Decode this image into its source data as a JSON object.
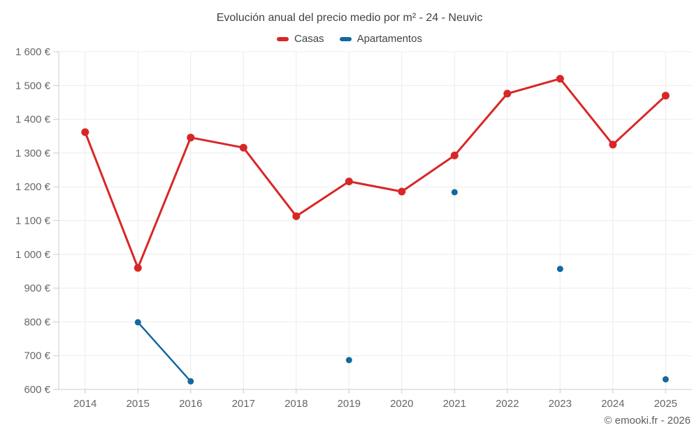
{
  "chart": {
    "title": "Evolución anual del precio medio por m² - 24 - Neuvic",
    "footer": "© emooki.fr - 2026"
  },
  "chart_data": {
    "type": "line",
    "title": "Evolución anual del precio medio por m² - 24 - Neuvic",
    "categories": [
      "2014",
      "2015",
      "2016",
      "2017",
      "2018",
      "2019",
      "2020",
      "2021",
      "2022",
      "2023",
      "2024",
      "2025"
    ],
    "series": [
      {
        "name": "Casas",
        "color": "#d92626",
        "line_width": 3,
        "marker_radius": 5.5,
        "values": [
          1362,
          960,
          1346,
          1316,
          1113,
          1216,
          1186,
          1293,
          1476,
          1520,
          1325,
          1470
        ]
      },
      {
        "name": "Apartamentos",
        "color": "#1468a0",
        "line_width": 2.5,
        "marker_radius": 4.5,
        "values": [
          null,
          799,
          624,
          null,
          null,
          687,
          null,
          1184,
          null,
          957,
          null,
          630
        ]
      }
    ],
    "ylim": [
      600,
      1600
    ],
    "y_tick_step": 100,
    "y_tick_suffix": " €",
    "grid": true,
    "legend_position": "top",
    "grid_color": "#ebebeb",
    "axis_color": "#cccccc"
  }
}
